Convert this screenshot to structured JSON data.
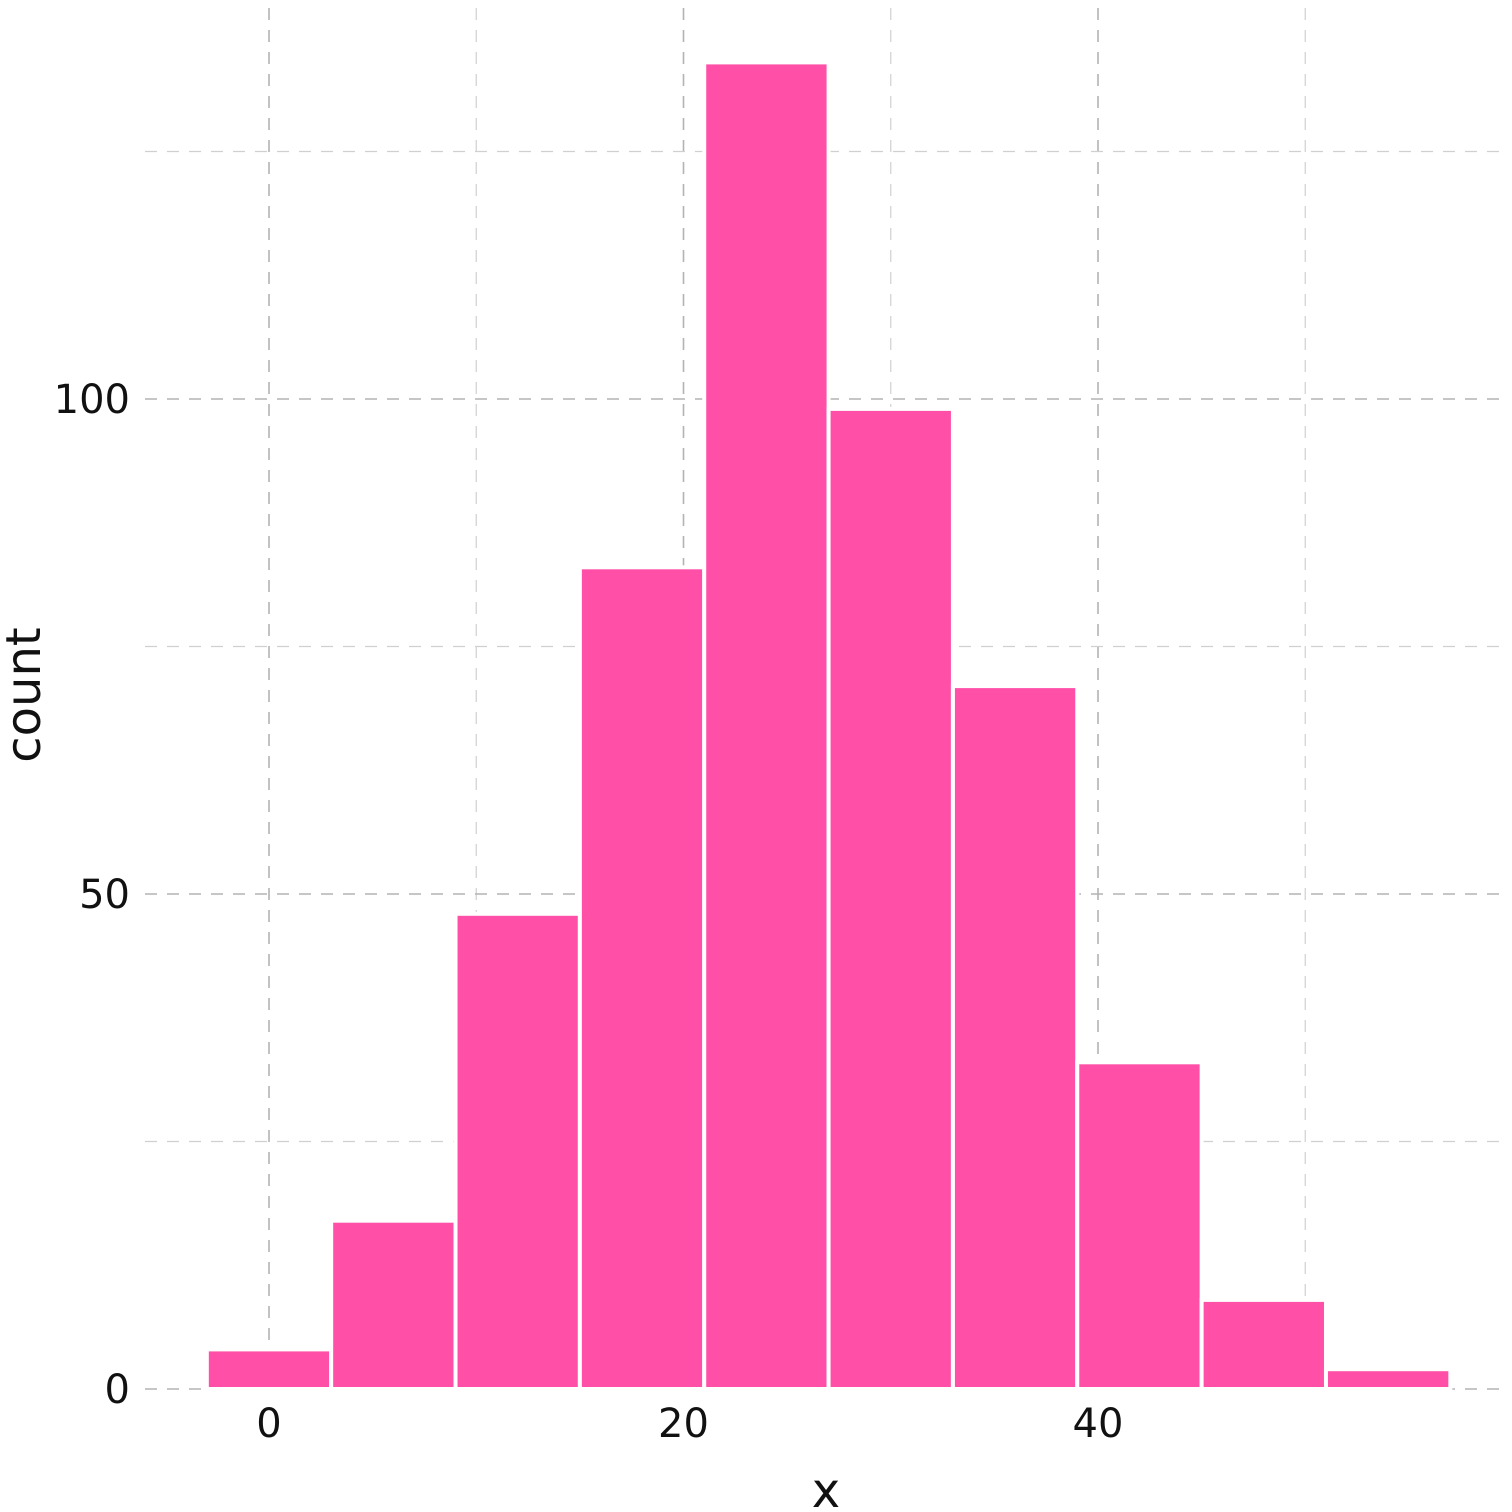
{
  "chart_data": {
    "type": "bar",
    "subtype": "histogram",
    "title": "",
    "xlabel": "x",
    "ylabel": "count",
    "bar_color": "#ff4fa7",
    "bar_edge_color": "#ffffff",
    "grid": true,
    "grid_style": "dashed",
    "xlim": [
      -3,
      56
    ],
    "ylim": [
      0,
      134
    ],
    "x_ticks": [
      0,
      20,
      40
    ],
    "x_tick_labels": [
      "0",
      "20",
      "40"
    ],
    "x_minor_ticks": [
      10,
      30,
      50
    ],
    "y_ticks": [
      0,
      50,
      100
    ],
    "y_tick_labels": [
      "0",
      "50",
      "100"
    ],
    "y_minor_ticks": [
      25,
      75,
      125
    ],
    "bins": [
      {
        "x0": -3.0,
        "x1": 3.0,
        "count": 4
      },
      {
        "x0": 3.0,
        "x1": 9.0,
        "count": 17
      },
      {
        "x0": 9.0,
        "x1": 15.0,
        "count": 48
      },
      {
        "x0": 15.0,
        "x1": 21.0,
        "count": 83
      },
      {
        "x0": 21.0,
        "x1": 27.0,
        "count": 134
      },
      {
        "x0": 27.0,
        "x1": 33.0,
        "count": 99
      },
      {
        "x0": 33.0,
        "x1": 39.0,
        "count": 71
      },
      {
        "x0": 39.0,
        "x1": 45.0,
        "count": 33
      },
      {
        "x0": 45.0,
        "x1": 51.0,
        "count": 9
      },
      {
        "x0": 51.0,
        "x1": 57.0,
        "count": 2
      }
    ]
  }
}
